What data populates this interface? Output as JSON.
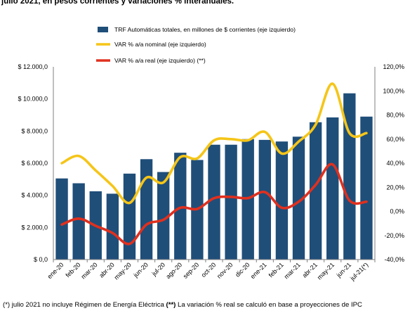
{
  "caption": "julio 2021, en pesos corrientes y variaciones % interanuales.",
  "footnote": {
    "part1": "(*) julio 2021 no incluye Régimen de Energía Eléctrica ",
    "bold": "(**)",
    "part2": " La variación % real se calculó en base a proyecciones de IPC"
  },
  "chart_data": {
    "type": "bar",
    "categories": [
      "ene-20",
      "feb-20",
      "mar-20",
      "abr-20",
      "may-20",
      "jun-20",
      "jul-20",
      "ago-20",
      "sep-20",
      "oct-20",
      "nov-20",
      "dic-20",
      "ene-21",
      "feb-21",
      "mar-21",
      "abr-21",
      "may-21",
      "jun-21",
      "jul-21(*)"
    ],
    "ylim_left": [
      0,
      12000
    ],
    "yticks_left": [
      "$ 0,0",
      "$ 2.000,0",
      "$ 4.000,0",
      "$ 6.000,0",
      "$ 8.000,0",
      "$ 10.000,0",
      "$ 12.000,0"
    ],
    "ylim_right": [
      -40,
      120
    ],
    "yticks_right": [
      "-40,0%",
      "-20,0%",
      "0,0%",
      "20,0%",
      "40,0%",
      "60,0%",
      "80,0%",
      "100,0%",
      "120,0%"
    ],
    "grid": false,
    "legend_position": "top-left",
    "series": [
      {
        "name": "TRF Automáticas totales, en millones de $ corrientes (eje izquierdo)",
        "type": "bar",
        "axis": "left",
        "color": "#1f4e79",
        "values": [
          5050,
          4750,
          4250,
          4100,
          5350,
          6250,
          5450,
          6650,
          6200,
          7150,
          7150,
          7500,
          7450,
          7350,
          7650,
          8550,
          8850,
          10350,
          8900
        ]
      },
      {
        "name": "VAR % a/a nominal (eje izquierdo)",
        "type": "line",
        "axis": "right",
        "color": "#f5c518",
        "values": [
          40,
          46,
          34,
          21,
          7,
          28,
          24,
          45,
          44,
          59,
          60,
          59,
          66,
          48,
          58,
          72,
          106,
          65,
          65
        ]
      },
      {
        "name": "VAR % a/a real (eje izquierdo) (**)",
        "type": "line",
        "axis": "right",
        "color": "#e0301e",
        "values": [
          -11,
          -6,
          -12,
          -18,
          -27,
          -11,
          -7,
          3,
          2,
          11,
          12,
          11,
          16,
          3,
          8,
          22,
          39,
          9,
          8
        ]
      }
    ]
  }
}
